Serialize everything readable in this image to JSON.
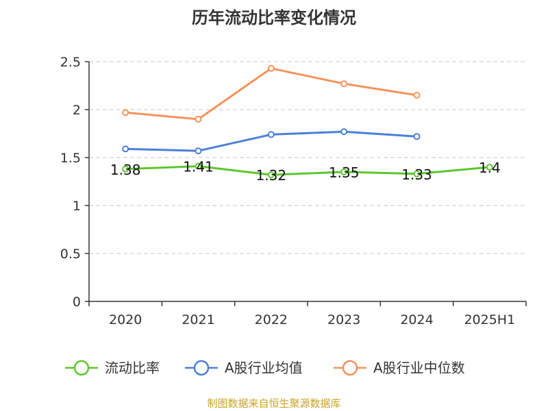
{
  "chart_data": {
    "type": "line",
    "title": "历年流动比率变化情况",
    "categories": [
      "2020",
      "2021",
      "2022",
      "2023",
      "2024",
      "2025H1"
    ],
    "ylim": [
      0,
      2.5
    ],
    "yticks": [
      "0",
      "0.5",
      "1",
      "1.5",
      "2",
      "2.5"
    ],
    "grid": true,
    "legend_position": "bottom",
    "series": [
      {
        "name": "流动比率",
        "color": "#5cc72e",
        "values": [
          1.38,
          1.41,
          1.32,
          1.35,
          1.33,
          1.4
        ],
        "labels": [
          "1.38",
          "1.41",
          "1.32",
          "1.35",
          "1.33",
          "1.4"
        ]
      },
      {
        "name": "A股行业均值",
        "color": "#4a7fd8",
        "values": [
          1.59,
          1.57,
          1.74,
          1.77,
          1.72,
          null
        ]
      },
      {
        "name": "A股行业中位数",
        "color": "#f5925a",
        "values": [
          1.97,
          1.9,
          2.43,
          2.27,
          2.15,
          null
        ]
      }
    ]
  },
  "footer": {
    "text": "制图数据来自恒生聚源数据库",
    "color": "#c9a227"
  }
}
